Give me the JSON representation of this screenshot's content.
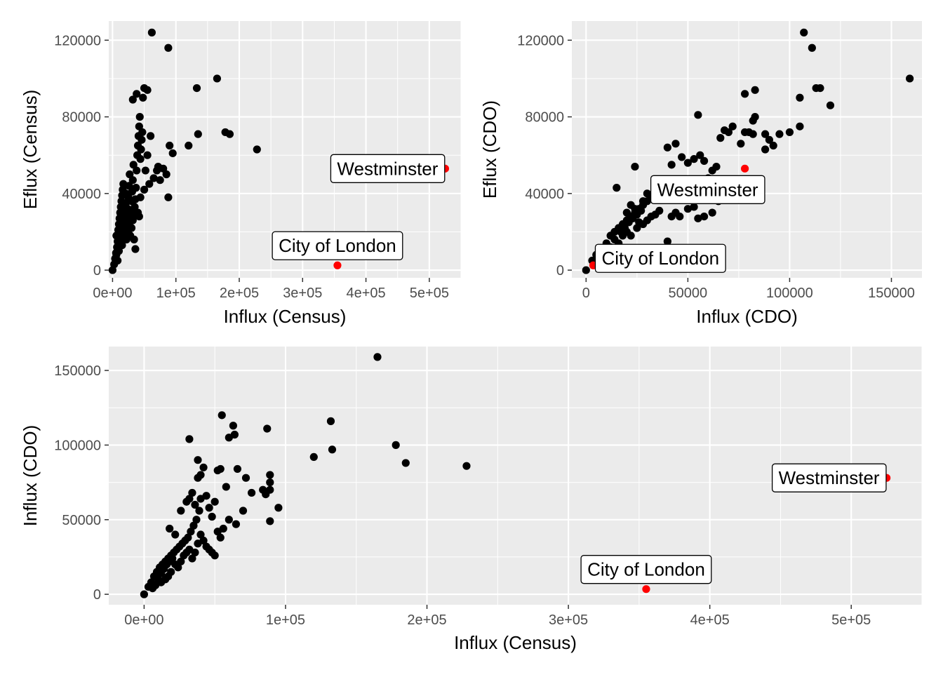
{
  "chart_data": [
    {
      "type": "scatter",
      "title": "",
      "xlabel": "Influx (Census)",
      "ylabel": "Eflux (Census)",
      "xlim": [
        -6000,
        550000
      ],
      "ylim": [
        -4000,
        130000
      ],
      "x_ticks": [
        {
          "value": 0,
          "label": "0e+00"
        },
        {
          "value": 100000,
          "label": "1e+05"
        },
        {
          "value": 200000,
          "label": "2e+05"
        },
        {
          "value": 300000,
          "label": "3e+05"
        },
        {
          "value": 400000,
          "label": "4e+05"
        },
        {
          "value": 500000,
          "label": "5e+05"
        }
      ],
      "y_ticks": [
        {
          "value": 0,
          "label": "0"
        },
        {
          "value": 40000,
          "label": "40000"
        },
        {
          "value": 80000,
          "label": "80000"
        },
        {
          "value": 120000,
          "label": "120000"
        }
      ],
      "grid": true,
      "point_color": "#000000",
      "highlight_color": "#ff0000",
      "points": [
        [
          0,
          0
        ],
        [
          2500,
          3000
        ],
        [
          4000,
          6000
        ],
        [
          5500,
          9000
        ],
        [
          7000,
          12000
        ],
        [
          8000,
          15000
        ],
        [
          6000,
          18000
        ],
        [
          9000,
          21000
        ],
        [
          10000,
          24000
        ],
        [
          11000,
          27000
        ],
        [
          12000,
          30000
        ],
        [
          13000,
          33000
        ],
        [
          14000,
          36000
        ],
        [
          15000,
          39000
        ],
        [
          16000,
          42000
        ],
        [
          17000,
          45000
        ],
        [
          18000,
          20000
        ],
        [
          19000,
          25000
        ],
        [
          20000,
          30000
        ],
        [
          21000,
          35000
        ],
        [
          22000,
          22000
        ],
        [
          23000,
          28000
        ],
        [
          24000,
          32000
        ],
        [
          25000,
          38000
        ],
        [
          26000,
          44000
        ],
        [
          27000,
          50000
        ],
        [
          28000,
          26000
        ],
        [
          29000,
          31000
        ],
        [
          30000,
          36000
        ],
        [
          31000,
          41000
        ],
        [
          32000,
          47000
        ],
        [
          33000,
          55000
        ],
        [
          34000,
          29000
        ],
        [
          35000,
          33000
        ],
        [
          36000,
          37000
        ],
        [
          37000,
          43000
        ],
        [
          38000,
          52000
        ],
        [
          39000,
          60000
        ],
        [
          40000,
          65000
        ],
        [
          41000,
          70000
        ],
        [
          42000,
          75000
        ],
        [
          43000,
          80000
        ],
        [
          44000,
          58000
        ],
        [
          45000,
          63000
        ],
        [
          46000,
          68000
        ],
        [
          47000,
          72000
        ],
        [
          48000,
          90000
        ],
        [
          38000,
          92000
        ],
        [
          32000,
          89000
        ],
        [
          55000,
          94000
        ],
        [
          50000,
          95000
        ],
        [
          62000,
          124000
        ],
        [
          88000,
          116000
        ],
        [
          60000,
          70000
        ],
        [
          65000,
          48000
        ],
        [
          70000,
          52000
        ],
        [
          72000,
          54000
        ],
        [
          75000,
          47000
        ],
        [
          80000,
          53000
        ],
        [
          85000,
          50000
        ],
        [
          88000,
          38000
        ],
        [
          90000,
          65000
        ],
        [
          95000,
          61000
        ],
        [
          120000,
          65000
        ],
        [
          133000,
          95000
        ],
        [
          135000,
          71000
        ],
        [
          165000,
          100000
        ],
        [
          178000,
          72000
        ],
        [
          185000,
          71000
        ],
        [
          228000,
          63000
        ],
        [
          10000,
          10000
        ],
        [
          12000,
          14000
        ],
        [
          14000,
          17000
        ],
        [
          16000,
          22000
        ],
        [
          18000,
          26000
        ],
        [
          20000,
          18000
        ],
        [
          22000,
          16000
        ],
        [
          24000,
          20000
        ],
        [
          26000,
          24000
        ],
        [
          28000,
          18000
        ],
        [
          30000,
          22000
        ],
        [
          32000,
          26000
        ],
        [
          34000,
          16000
        ],
        [
          36000,
          11000
        ],
        [
          40000,
          30000
        ],
        [
          42000,
          28000
        ],
        [
          44000,
          38000
        ],
        [
          50000,
          42000
        ],
        [
          52000,
          52000
        ],
        [
          55000,
          60000
        ],
        [
          58000,
          45000
        ],
        [
          8000,
          5000
        ],
        [
          6000,
          8000
        ],
        [
          9000,
          17000
        ],
        [
          11000,
          19000
        ],
        [
          13000,
          23000
        ],
        [
          15000,
          13000
        ],
        [
          17000,
          28000
        ],
        [
          19000,
          33000
        ],
        [
          21000,
          40000
        ]
      ],
      "annotations": [
        {
          "label": "Westminster",
          "x": 525000,
          "y": 53000
        },
        {
          "label": "City of London",
          "x": 355000,
          "y": 2500
        }
      ]
    },
    {
      "type": "scatter",
      "title": "",
      "xlabel": "Influx (CDO)",
      "ylabel": "Eflux (CDO)",
      "xlim": [
        -7000,
        165000
      ],
      "ylim": [
        -4000,
        130000
      ],
      "x_ticks": [
        {
          "value": 0,
          "label": "0"
        },
        {
          "value": 50000,
          "label": "50000"
        },
        {
          "value": 100000,
          "label": "100000"
        },
        {
          "value": 150000,
          "label": "150000"
        }
      ],
      "y_ticks": [
        {
          "value": 0,
          "label": "0"
        },
        {
          "value": 40000,
          "label": "40000"
        },
        {
          "value": 80000,
          "label": "80000"
        },
        {
          "value": 120000,
          "label": "120000"
        }
      ],
      "grid": true,
      "point_color": "#000000",
      "highlight_color": "#ff0000",
      "points": [
        [
          0,
          0
        ],
        [
          3000,
          5000
        ],
        [
          5000,
          8000
        ],
        [
          8000,
          10000
        ],
        [
          10000,
          14000
        ],
        [
          12000,
          18000
        ],
        [
          14000,
          20000
        ],
        [
          16000,
          22000
        ],
        [
          18000,
          24000
        ],
        [
          20000,
          26000
        ],
        [
          22000,
          28000
        ],
        [
          24000,
          30000
        ],
        [
          26000,
          32000
        ],
        [
          28000,
          34000
        ],
        [
          30000,
          36000
        ],
        [
          32000,
          38000
        ],
        [
          34000,
          40000
        ],
        [
          36000,
          42000
        ],
        [
          38000,
          44000
        ],
        [
          40000,
          46000
        ],
        [
          15000,
          43000
        ],
        [
          24000,
          54000
        ],
        [
          40000,
          64000
        ],
        [
          44000,
          66000
        ],
        [
          42000,
          55000
        ],
        [
          47000,
          59000
        ],
        [
          50000,
          56000
        ],
        [
          53000,
          58000
        ],
        [
          56000,
          60000
        ],
        [
          58000,
          57000
        ],
        [
          60000,
          48000
        ],
        [
          62000,
          52000
        ],
        [
          64000,
          54000
        ],
        [
          66000,
          69000
        ],
        [
          68000,
          73000
        ],
        [
          70000,
          72000
        ],
        [
          72000,
          75000
        ],
        [
          76000,
          66000
        ],
        [
          55000,
          81000
        ],
        [
          78000,
          92000
        ],
        [
          83000,
          94000
        ],
        [
          82000,
          78000
        ],
        [
          83000,
          80000
        ],
        [
          78000,
          72000
        ],
        [
          80000,
          72000
        ],
        [
          82000,
          71000
        ],
        [
          88000,
          71000
        ],
        [
          90000,
          68000
        ],
        [
          92000,
          65000
        ],
        [
          95000,
          71000
        ],
        [
          100000,
          72000
        ],
        [
          105000,
          90000
        ],
        [
          105000,
          75000
        ],
        [
          107000,
          124000
        ],
        [
          111000,
          116000
        ],
        [
          113000,
          95000
        ],
        [
          115000,
          95000
        ],
        [
          120000,
          86000
        ],
        [
          159000,
          100000
        ],
        [
          88000,
          63000
        ],
        [
          40000,
          15000
        ],
        [
          42000,
          28000
        ],
        [
          44000,
          30000
        ],
        [
          46000,
          28000
        ],
        [
          50000,
          32000
        ],
        [
          53000,
          33000
        ],
        [
          55000,
          27000
        ],
        [
          58000,
          28000
        ],
        [
          62000,
          30000
        ],
        [
          65000,
          36000
        ],
        [
          20000,
          20000
        ],
        [
          22000,
          18000
        ],
        [
          25000,
          22000
        ],
        [
          28000,
          24000
        ],
        [
          30000,
          26000
        ],
        [
          32000,
          28000
        ],
        [
          34000,
          29000
        ],
        [
          36000,
          31000
        ],
        [
          10000,
          10000
        ],
        [
          12000,
          12000
        ],
        [
          14000,
          16000
        ],
        [
          16000,
          14000
        ],
        [
          18000,
          18000
        ],
        [
          20000,
          30000
        ],
        [
          22000,
          34000
        ],
        [
          24000,
          32000
        ],
        [
          26000,
          25000
        ],
        [
          28000,
          36000
        ],
        [
          30000,
          40000
        ],
        [
          34000,
          46000
        ],
        [
          6000,
          4000
        ],
        [
          9000,
          7000
        ],
        [
          11000,
          9000
        ],
        [
          13000,
          11000
        ],
        [
          17000,
          20000
        ],
        [
          19000,
          22000
        ],
        [
          21000,
          25000
        ],
        [
          23000,
          27000
        ],
        [
          25000,
          29000
        ],
        [
          27000,
          31000
        ]
      ],
      "annotations": [
        {
          "label": "Westminster",
          "x": 78000,
          "y": 53000
        },
        {
          "label": "City of London",
          "x": 3500,
          "y": 2500
        }
      ]
    },
    {
      "type": "scatter",
      "title": "",
      "xlabel": "Influx (Census)",
      "ylabel": "Influx (CDO)",
      "xlim": [
        -25000,
        550000
      ],
      "ylim": [
        -7000,
        166000
      ],
      "x_ticks": [
        {
          "value": 0,
          "label": "0e+00"
        },
        {
          "value": 100000,
          "label": "1e+05"
        },
        {
          "value": 200000,
          "label": "2e+05"
        },
        {
          "value": 300000,
          "label": "3e+05"
        },
        {
          "value": 400000,
          "label": "4e+05"
        },
        {
          "value": 500000,
          "label": "5e+05"
        }
      ],
      "y_ticks": [
        {
          "value": 0,
          "label": "0"
        },
        {
          "value": 50000,
          "label": "50000"
        },
        {
          "value": 100000,
          "label": "100000"
        },
        {
          "value": 150000,
          "label": "150000"
        }
      ],
      "grid": true,
      "point_color": "#000000",
      "highlight_color": "#ff0000",
      "points": [
        [
          0,
          0
        ],
        [
          3000,
          5000
        ],
        [
          5000,
          8000
        ],
        [
          7000,
          12000
        ],
        [
          9000,
          15000
        ],
        [
          11000,
          18000
        ],
        [
          13000,
          20000
        ],
        [
          15000,
          22000
        ],
        [
          17000,
          24000
        ],
        [
          19000,
          26000
        ],
        [
          21000,
          28000
        ],
        [
          23000,
          30000
        ],
        [
          25000,
          32000
        ],
        [
          27000,
          34000
        ],
        [
          29000,
          36000
        ],
        [
          31000,
          38000
        ],
        [
          33000,
          42000
        ],
        [
          35000,
          46000
        ],
        [
          37000,
          50000
        ],
        [
          39000,
          56000
        ],
        [
          18000,
          44000
        ],
        [
          22000,
          40000
        ],
        [
          26000,
          56000
        ],
        [
          30000,
          62000
        ],
        [
          32000,
          64000
        ],
        [
          34000,
          68000
        ],
        [
          36000,
          60000
        ],
        [
          38000,
          78000
        ],
        [
          40000,
          80000
        ],
        [
          42000,
          85000
        ],
        [
          38000,
          90000
        ],
        [
          32000,
          104000
        ],
        [
          40000,
          64000
        ],
        [
          44000,
          66000
        ],
        [
          46000,
          58000
        ],
        [
          48000,
          52000
        ],
        [
          50000,
          62000
        ],
        [
          52000,
          83000
        ],
        [
          54000,
          84000
        ],
        [
          55000,
          120000
        ],
        [
          60000,
          105000
        ],
        [
          63000,
          113000
        ],
        [
          64000,
          107000
        ],
        [
          58000,
          72000
        ],
        [
          60000,
          50000
        ],
        [
          65000,
          47000
        ],
        [
          66000,
          84000
        ],
        [
          70000,
          56000
        ],
        [
          72000,
          78000
        ],
        [
          76000,
          68000
        ],
        [
          84000,
          70000
        ],
        [
          86000,
          67000
        ],
        [
          87000,
          111000
        ],
        [
          89000,
          80000
        ],
        [
          89000,
          75000
        ],
        [
          89000,
          70000
        ],
        [
          89000,
          49000
        ],
        [
          95000,
          58000
        ],
        [
          120000,
          92000
        ],
        [
          132000,
          116000
        ],
        [
          133000,
          97000
        ],
        [
          165000,
          159000
        ],
        [
          178000,
          100000
        ],
        [
          185000,
          88000
        ],
        [
          228000,
          86000
        ],
        [
          10000,
          10000
        ],
        [
          12000,
          14000
        ],
        [
          14000,
          17000
        ],
        [
          16000,
          20000
        ],
        [
          18000,
          22000
        ],
        [
          20000,
          24000
        ],
        [
          22000,
          20000
        ],
        [
          24000,
          18000
        ],
        [
          26000,
          22000
        ],
        [
          28000,
          26000
        ],
        [
          30000,
          28000
        ],
        [
          32000,
          30000
        ],
        [
          34000,
          24000
        ],
        [
          36000,
          28000
        ],
        [
          38000,
          34000
        ],
        [
          40000,
          40000
        ],
        [
          42000,
          36000
        ],
        [
          44000,
          32000
        ],
        [
          46000,
          30000
        ],
        [
          48000,
          28000
        ],
        [
          50000,
          26000
        ],
        [
          52000,
          42000
        ],
        [
          54000,
          38000
        ],
        [
          56000,
          44000
        ],
        [
          6000,
          4000
        ],
        [
          8000,
          6000
        ],
        [
          12000,
          8000
        ],
        [
          15000,
          10000
        ],
        [
          17000,
          12000
        ],
        [
          19000,
          15000
        ]
      ],
      "annotations": [
        {
          "label": "Westminster",
          "x": 525000,
          "y": 78000
        },
        {
          "label": "City of London",
          "x": 355000,
          "y": 3500
        }
      ]
    }
  ]
}
